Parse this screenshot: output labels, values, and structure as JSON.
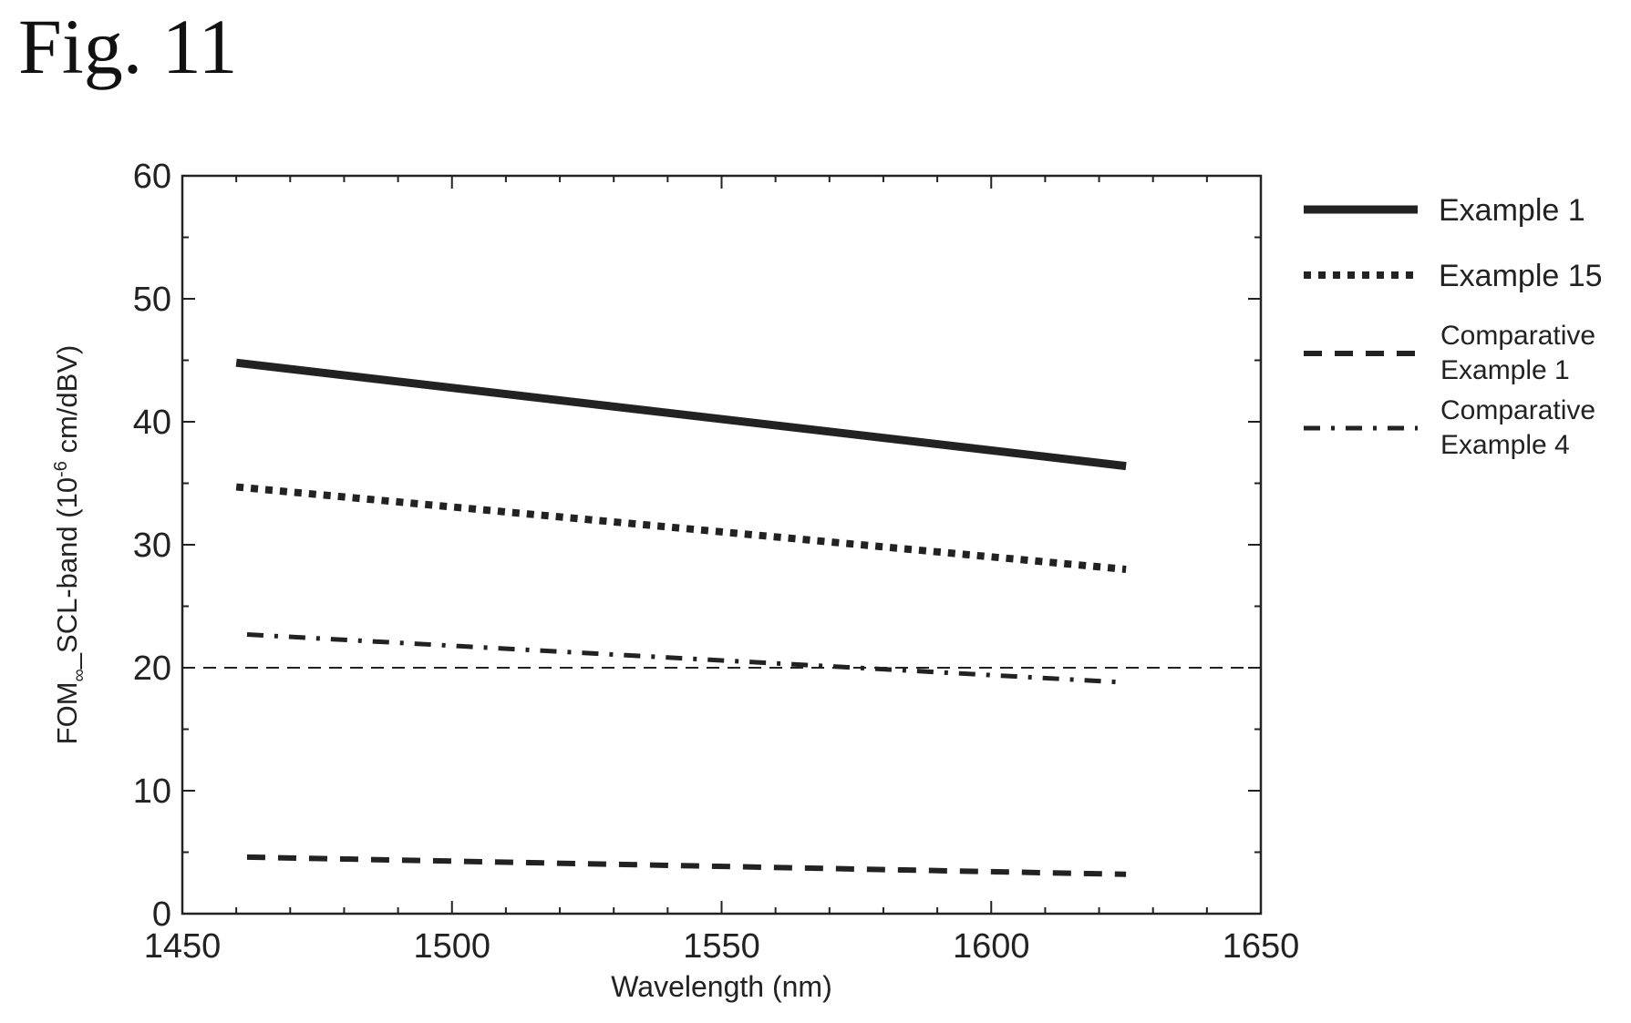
{
  "figure_label": "Fig. 11",
  "chart_data": {
    "type": "line",
    "title": "",
    "xlabel": "Wavelength (nm)",
    "ylabel": {
      "prefix": "FOM",
      "subscript": "∞",
      "mid": "_SCL-band (10",
      "superscript": "-6",
      "suffix": " cm/dBV)"
    },
    "xlim": [
      1450,
      1650
    ],
    "ylim": [
      0,
      60
    ],
    "xticks": [
      1450,
      1500,
      1550,
      1600,
      1650
    ],
    "yticks": [
      0,
      10,
      20,
      30,
      40,
      50,
      60
    ],
    "grid": false,
    "legend_position": "right, outside plot",
    "reference_line": {
      "y": 20,
      "style": "dashed"
    },
    "series": [
      {
        "name": "Example 1",
        "style": "solid-thick",
        "x": [
          1460,
          1625
        ],
        "y": [
          44.8,
          36.4
        ]
      },
      {
        "name": "Example 15",
        "style": "dotted-thick",
        "x": [
          1460,
          1625
        ],
        "y": [
          34.7,
          28.0
        ]
      },
      {
        "name": "Comparative Example 1",
        "legend_lines": [
          "Comparative",
          "Example 1"
        ],
        "style": "dashed",
        "x": [
          1462,
          1625
        ],
        "y": [
          4.6,
          3.2
        ]
      },
      {
        "name": "Comparative Example 4",
        "legend_lines": [
          "Comparative",
          "Example 4"
        ],
        "style": "dash-dot",
        "x": [
          1462,
          1625
        ],
        "y": [
          22.7,
          18.8
        ]
      }
    ]
  }
}
